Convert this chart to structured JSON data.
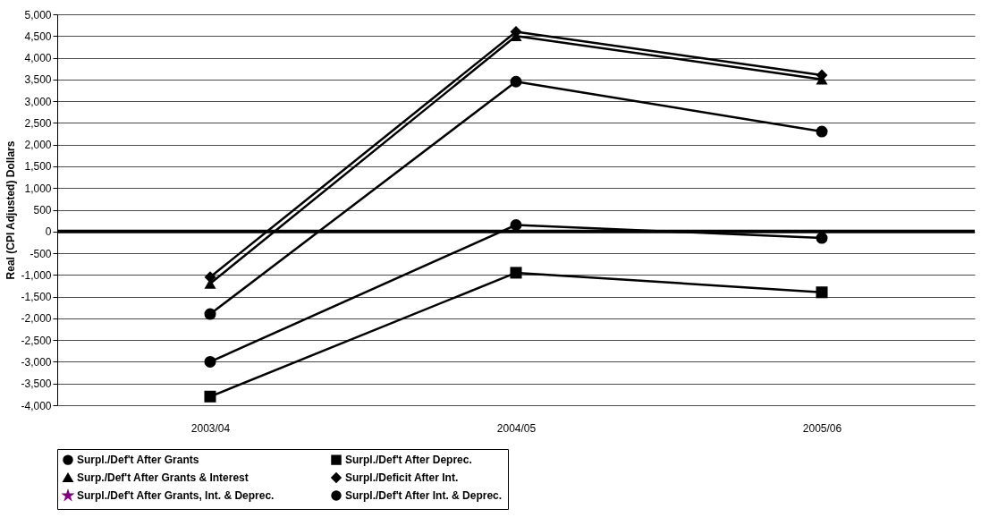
{
  "chart_data": {
    "type": "line",
    "ylabel": "Real (CPI Adjusted) Dollars",
    "categories": [
      "2003/04",
      "2004/05",
      "2005/06"
    ],
    "series": [
      {
        "name": "Surpl./Def't After Grants",
        "color": "#000000",
        "marker": "circle",
        "values": [
          -3000,
          150,
          -150
        ]
      },
      {
        "name": "Surpl./Def't After Deprec.",
        "color": "#000000",
        "marker": "square",
        "values": [
          -3800,
          -950,
          -1400
        ]
      },
      {
        "name": "Surp./Def't After Grants & Interest",
        "color": "#000000",
        "marker": "triangle",
        "values": [
          -1200,
          4500,
          3500
        ]
      },
      {
        "name": "Surpl./Deficit After Int.",
        "color": "#000000",
        "marker": "diamond",
        "values": [
          -1050,
          4600,
          3600
        ]
      },
      {
        "name": "Surpl./Def't After Grants, Int. & Deprec.",
        "color": "#800080",
        "marker": "star",
        "values": [
          null,
          null,
          null
        ]
      },
      {
        "name": "Surpl./Def't After Int. & Deprec.",
        "color": "#000000",
        "marker": "circle",
        "values": [
          -1900,
          3450,
          2300
        ]
      }
    ],
    "ylim": [
      -4000,
      5000
    ],
    "yticks": [
      {
        "value": -4000,
        "label": "-4,000"
      },
      {
        "value": -3500,
        "label": "-3,500"
      },
      {
        "value": -3000,
        "label": "-3,000"
      },
      {
        "value": -2500,
        "label": "-2,500"
      },
      {
        "value": -2000,
        "label": "-2,000"
      },
      {
        "value": -1500,
        "label": "-1,500"
      },
      {
        "value": -1000,
        "label": "-1,000"
      },
      -500,
      0,
      500,
      {
        "value": 1000,
        "label": "1,000"
      },
      {
        "value": 1500,
        "label": "1,500"
      },
      {
        "value": 2000,
        "label": "2,000"
      },
      {
        "value": 2500,
        "label": "2,500"
      },
      {
        "value": 3000,
        "label": "3,000"
      },
      {
        "value": 3500,
        "label": "3,500"
      },
      {
        "value": 4000,
        "label": "4,000"
      },
      {
        "value": 4500,
        "label": "4,500"
      },
      {
        "value": 5000,
        "label": "5,000"
      }
    ],
    "ref_lines": [
      {
        "axis": "y",
        "value": 0,
        "color": "#000000"
      }
    ],
    "grid": "y",
    "legend": "bottom"
  }
}
